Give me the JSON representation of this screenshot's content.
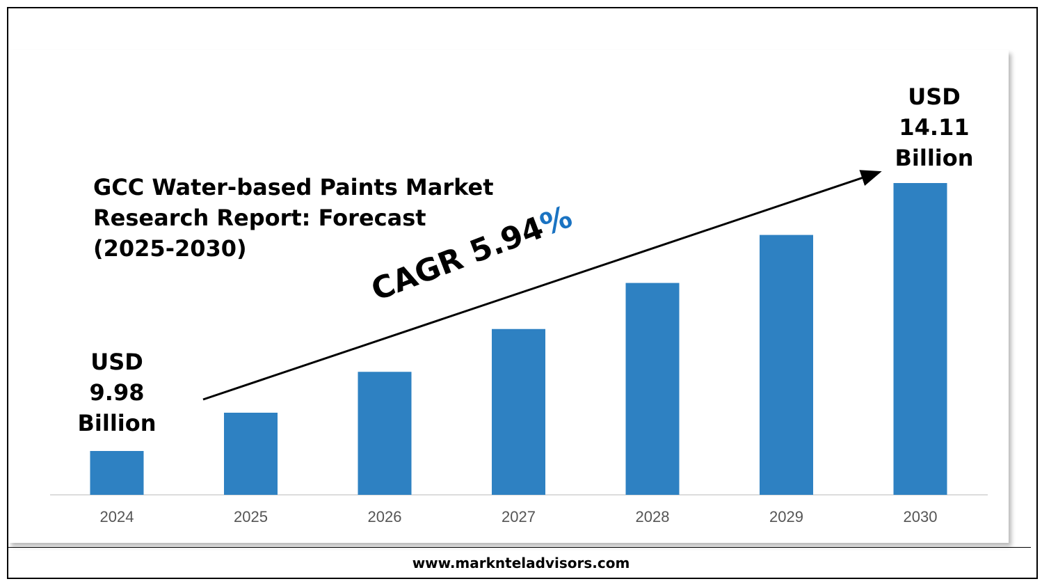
{
  "chart_data": {
    "type": "bar",
    "title": "GCC Water-based Paints Market\nResearch Report: Forecast\n(2025-2030)",
    "categories": [
      "2024",
      "2025",
      "2026",
      "2027",
      "2028",
      "2029",
      "2030"
    ],
    "values": [
      9.98,
      10.57,
      11.2,
      11.86,
      12.57,
      13.31,
      14.11
    ],
    "ylim": [
      0,
      14.11
    ],
    "xlabel": "",
    "ylabel": "",
    "bar_color": "#2e81c2",
    "grid": false,
    "annotations": {
      "start": {
        "line1": "USD",
        "line2": "9.98",
        "line3": "Billion"
      },
      "end": {
        "line1": "USD",
        "line2": "14.11",
        "line3": "Billion"
      },
      "cagr_text": "CAGR 5.94",
      "cagr_pct": "%"
    }
  },
  "footer": {
    "website": "www.marknteladvisors.com"
  },
  "colors": {
    "bar": "#2e81c2",
    "accent": "#1a73c2",
    "text": "#000000",
    "axis": "#d0d0d0"
  }
}
